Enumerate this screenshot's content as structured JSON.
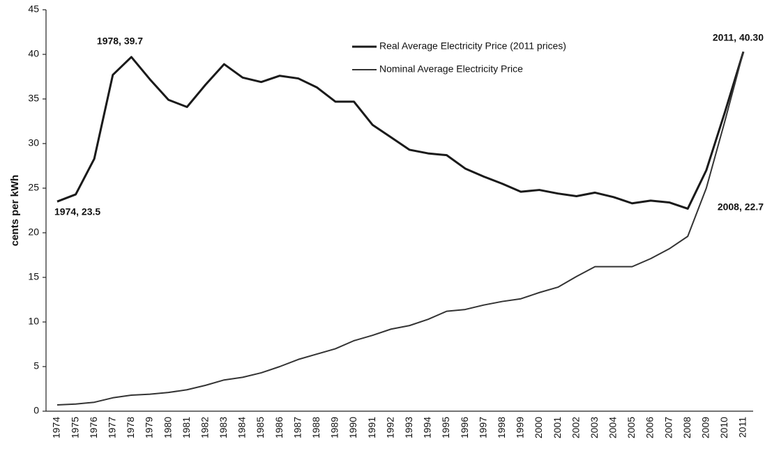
{
  "chart_data": {
    "type": "line",
    "y_label": "cents per kWh",
    "categories": [
      "1974",
      "1975",
      "1976",
      "1977",
      "1978",
      "1979",
      "1980",
      "1981",
      "1982",
      "1983",
      "1984",
      "1985",
      "1986",
      "1987",
      "1988",
      "1989",
      "1990",
      "1991",
      "1992",
      "1993",
      "1994",
      "1995",
      "1996",
      "1997",
      "1998",
      "1999",
      "2000",
      "2001",
      "2002",
      "2003",
      "2004",
      "2005",
      "2006",
      "2007",
      "2008",
      "2009",
      "2010",
      "2011"
    ],
    "series": [
      {
        "name": "Real Average Electricity Price (2011 prices)",
        "color": "#1a1a1a",
        "values": [
          23.5,
          24.3,
          28.3,
          37.7,
          39.7,
          37.2,
          34.9,
          34.1,
          36.6,
          38.9,
          37.4,
          36.9,
          37.6,
          37.3,
          36.3,
          34.7,
          34.7,
          32.1,
          30.7,
          29.3,
          28.9,
          28.7,
          27.2,
          26.3,
          25.5,
          24.6,
          24.8,
          24.4,
          24.1,
          24.5,
          24.0,
          23.3,
          23.6,
          23.4,
          22.7,
          27.0,
          33.5,
          40.3
        ]
      },
      {
        "name": "Nominal Average Electricity Price",
        "color": "#333333",
        "values": [
          0.7,
          0.8,
          1.0,
          1.5,
          1.8,
          1.9,
          2.1,
          2.4,
          2.9,
          3.5,
          3.8,
          4.3,
          5.0,
          5.8,
          6.4,
          7.0,
          7.9,
          8.5,
          9.2,
          9.6,
          10.3,
          11.2,
          11.4,
          11.9,
          12.3,
          12.6,
          13.3,
          13.9,
          15.1,
          16.2,
          16.2,
          16.2,
          17.1,
          18.2,
          19.6,
          25.0,
          32.5,
          40.3
        ]
      }
    ],
    "annotations": [
      "1978, 39.7",
      "1974, 23.5",
      "2008, 22.7",
      "2011, 40.30"
    ],
    "ylim": [
      0,
      45
    ],
    "yticks": [
      0,
      5,
      10,
      15,
      20,
      25,
      30,
      35,
      40,
      45
    ],
    "legend": "top-right"
  }
}
